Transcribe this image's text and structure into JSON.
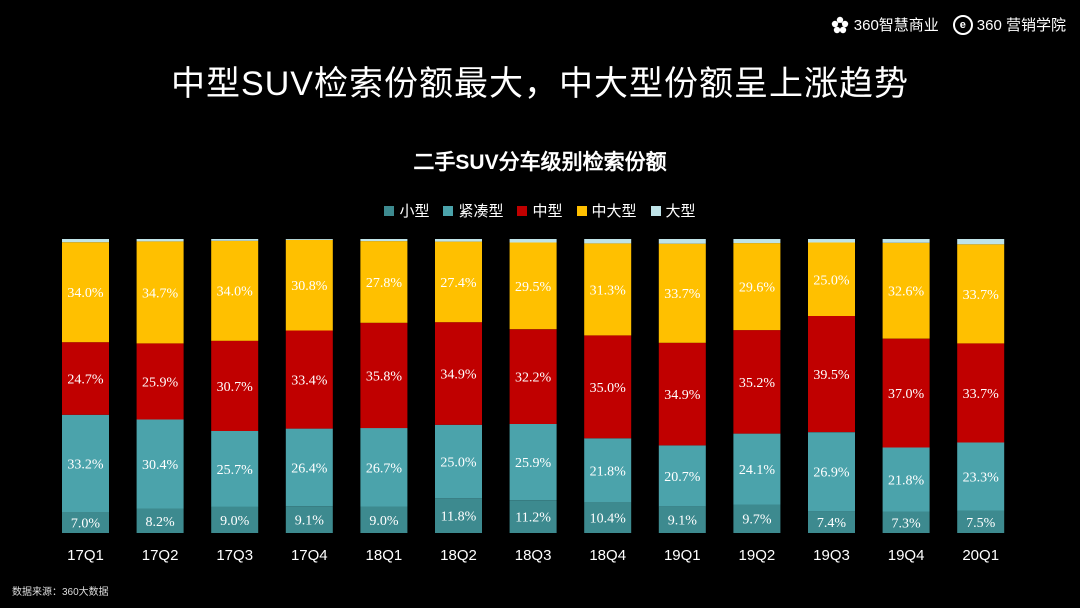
{
  "brand": {
    "logo1_text": "360智慧商业",
    "logo2_mark": "e",
    "logo2_text": "360 营销学院"
  },
  "title": "中型SUV检索份额最大，中大型份额呈上涨趋势",
  "footer": "数据来源：360大数据",
  "chart_data": {
    "type": "bar",
    "stacked": true,
    "normalized": true,
    "title": "二手SUV分车级别检索份额",
    "categories": [
      "17Q1",
      "17Q2",
      "17Q3",
      "17Q4",
      "18Q1",
      "18Q2",
      "18Q3",
      "18Q4",
      "19Q1",
      "19Q2",
      "19Q3",
      "19Q4",
      "20Q1"
    ],
    "legend_position": "top",
    "series": [
      {
        "name": "小型",
        "color": "#3d8a8f",
        "values": [
          7.0,
          8.2,
          9.0,
          9.1,
          9.0,
          11.8,
          11.2,
          10.4,
          9.1,
          9.7,
          7.4,
          7.3,
          7.5
        ],
        "labels": [
          "7.0%",
          "8.2%",
          "9.0%",
          "9.1%",
          "9.0%",
          "11.8%",
          "11.2%",
          "10.4%",
          "9.1%",
          "9.7%",
          "7.4%",
          "7.3%",
          "7.5%"
        ]
      },
      {
        "name": "紧凑型",
        "color": "#4ba3ab",
        "values": [
          33.2,
          30.4,
          25.7,
          26.4,
          26.7,
          25.0,
          25.9,
          21.8,
          20.7,
          24.1,
          26.9,
          21.8,
          23.3
        ],
        "labels": [
          "33.2%",
          "30.4%",
          "25.7%",
          "26.4%",
          "26.7%",
          "25.0%",
          "25.9%",
          "21.8%",
          "20.7%",
          "24.1%",
          "26.9%",
          "21.8%",
          "23.3%"
        ]
      },
      {
        "name": "中型",
        "color": "#c00000",
        "values": [
          24.7,
          25.9,
          30.7,
          33.4,
          35.8,
          34.9,
          32.2,
          35.0,
          34.9,
          35.2,
          39.5,
          37.0,
          33.7
        ],
        "labels": [
          "24.7%",
          "25.9%",
          "30.7%",
          "33.4%",
          "35.8%",
          "34.9%",
          "32.2%",
          "35.0%",
          "34.9%",
          "35.2%",
          "39.5%",
          "37.0%",
          "33.7%"
        ]
      },
      {
        "name": "中大型",
        "color": "#ffc000",
        "values": [
          34.0,
          34.7,
          34.0,
          30.8,
          27.8,
          27.4,
          29.5,
          31.3,
          33.7,
          29.6,
          25.0,
          32.6,
          33.7
        ],
        "labels": [
          "34.0%",
          "34.7%",
          "34.0%",
          "30.8%",
          "27.8%",
          "27.4%",
          "29.5%",
          "31.3%",
          "33.7%",
          "29.6%",
          "25.0%",
          "32.6%",
          "33.7%"
        ]
      },
      {
        "name": "大型",
        "color": "#bfe3e8",
        "values": [
          1.1,
          0.8,
          0.6,
          0.3,
          0.7,
          0.9,
          1.2,
          1.5,
          1.6,
          1.4,
          1.2,
          1.3,
          1.8
        ]
      }
    ]
  }
}
